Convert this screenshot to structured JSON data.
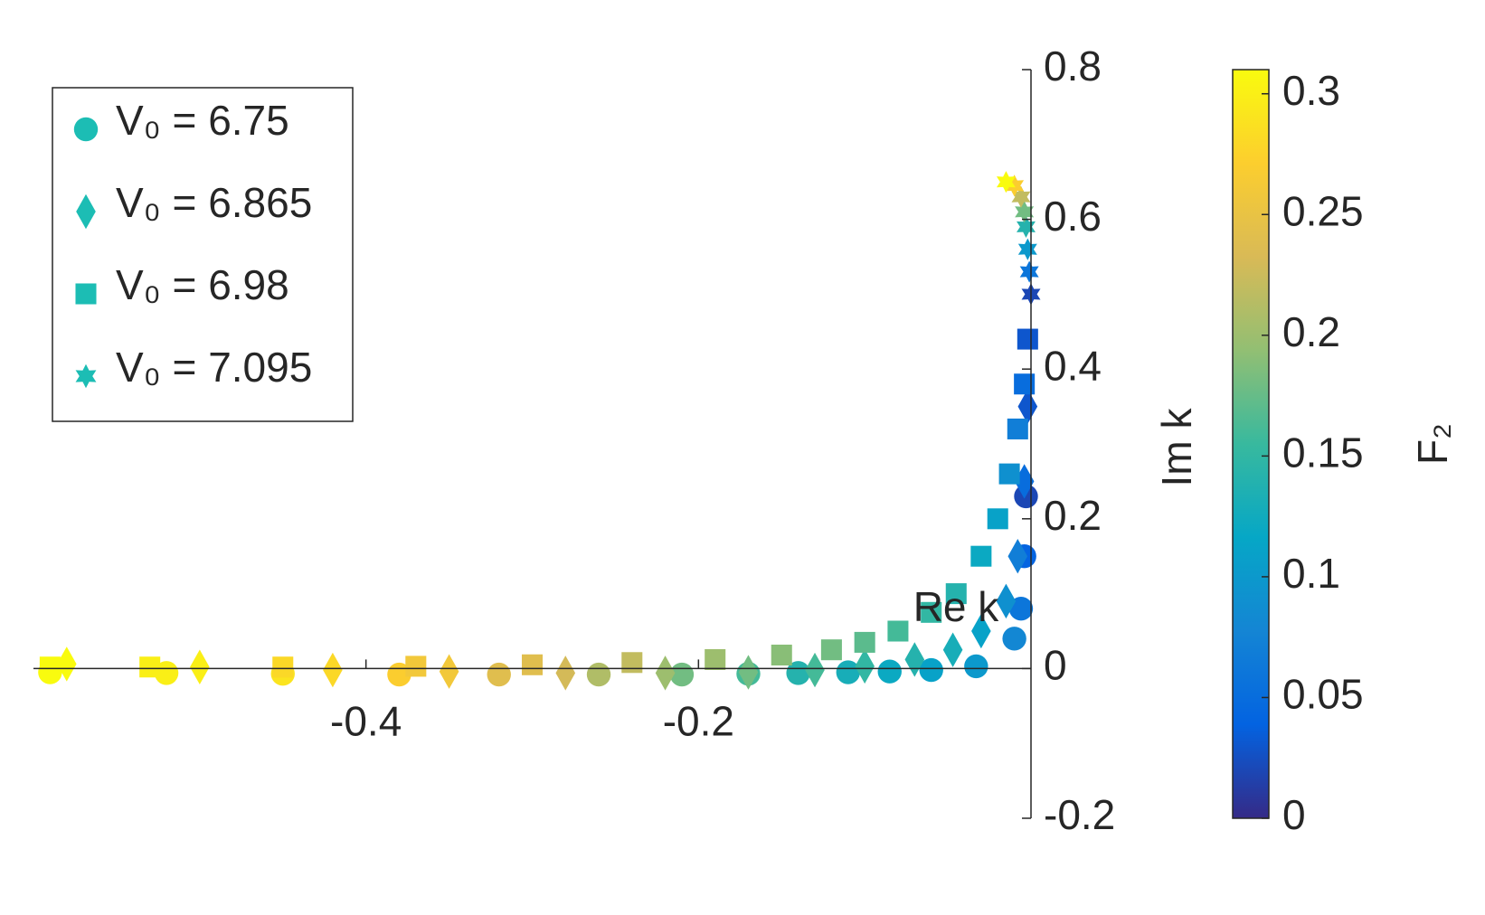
{
  "chart_data": {
    "type": "scatter",
    "x_label": "Re k",
    "y_label": "Im k",
    "colorbar_label": "F₂",
    "xlim": [
      -0.6,
      0
    ],
    "ylim": [
      -0.2,
      0.8
    ],
    "xticks": [
      -0.4,
      -0.2
    ],
    "yticks": [
      -0.2,
      0,
      0.2,
      0.4,
      0.6,
      0.8
    ],
    "clim": [
      0,
      0.31
    ],
    "cticks": [
      0,
      0.05,
      0.1,
      0.15,
      0.2,
      0.25,
      0.3
    ],
    "colormap": "parula",
    "legend": "top-left",
    "series": [
      {
        "name": "V₀ = 6.75",
        "marker": "circle",
        "color": "#1cbdb4",
        "x": [
          -0.003,
          -0.004,
          -0.006,
          -0.01,
          -0.033,
          -0.06,
          -0.085,
          -0.11,
          -0.14,
          -0.17,
          -0.21,
          -0.26,
          -0.32,
          -0.38,
          -0.45,
          -0.52,
          -0.59
        ],
        "values": [
          0.23,
          0.15,
          0.08,
          0.04,
          0.003,
          -0.002,
          -0.004,
          -0.005,
          -0.006,
          -0.007,
          -0.008,
          -0.008,
          -0.008,
          -0.008,
          -0.007,
          -0.006,
          -0.005
        ],
        "c": [
          0.02,
          0.04,
          0.06,
          0.08,
          0.1,
          0.11,
          0.12,
          0.13,
          0.14,
          0.16,
          0.18,
          0.21,
          0.24,
          0.27,
          0.29,
          0.3,
          0.31
        ]
      },
      {
        "name": "V₀ = 6.865",
        "marker": "diamond",
        "color": "#1cbdb4",
        "x": [
          -0.002,
          -0.004,
          -0.008,
          -0.015,
          -0.03,
          -0.047,
          -0.07,
          -0.1,
          -0.13,
          -0.17,
          -0.22,
          -0.28,
          -0.35,
          -0.42,
          -0.5,
          -0.58
        ],
        "values": [
          0.35,
          0.25,
          0.15,
          0.09,
          0.05,
          0.025,
          0.012,
          0.003,
          -0.002,
          -0.005,
          -0.006,
          -0.006,
          -0.004,
          -0.002,
          0.002,
          0.006
        ],
        "c": [
          0.03,
          0.05,
          0.07,
          0.09,
          0.11,
          0.13,
          0.14,
          0.15,
          0.16,
          0.18,
          0.2,
          0.23,
          0.26,
          0.28,
          0.3,
          0.31
        ]
      },
      {
        "name": "V₀ = 6.98",
        "marker": "square",
        "color": "#1cbdb4",
        "x": [
          -0.002,
          -0.004,
          -0.008,
          -0.013,
          -0.02,
          -0.03,
          -0.045,
          -0.06,
          -0.08,
          -0.1,
          -0.12,
          -0.15,
          -0.19,
          -0.24,
          -0.3,
          -0.37,
          -0.45,
          -0.53,
          -0.59
        ],
        "values": [
          0.44,
          0.38,
          0.32,
          0.26,
          0.2,
          0.15,
          0.1,
          0.075,
          0.05,
          0.035,
          0.025,
          0.018,
          0.012,
          0.008,
          0.005,
          0.003,
          0.002,
          0.002,
          0.002
        ],
        "c": [
          0.03,
          0.05,
          0.07,
          0.09,
          0.11,
          0.12,
          0.14,
          0.15,
          0.16,
          0.17,
          0.18,
          0.19,
          0.2,
          0.22,
          0.24,
          0.26,
          0.28,
          0.3,
          0.31
        ]
      },
      {
        "name": "V₀ = 7.095",
        "marker": "hexagram",
        "color": "#1cbdb4",
        "x": [
          0,
          -0.001,
          -0.002,
          -0.003,
          -0.004,
          -0.006,
          -0.01,
          -0.015
        ],
        "values": [
          0.5,
          0.53,
          0.56,
          0.59,
          0.61,
          0.63,
          0.645,
          0.65
        ],
        "c": [
          0.02,
          0.06,
          0.1,
          0.14,
          0.18,
          0.22,
          0.27,
          0.31
        ]
      }
    ]
  }
}
